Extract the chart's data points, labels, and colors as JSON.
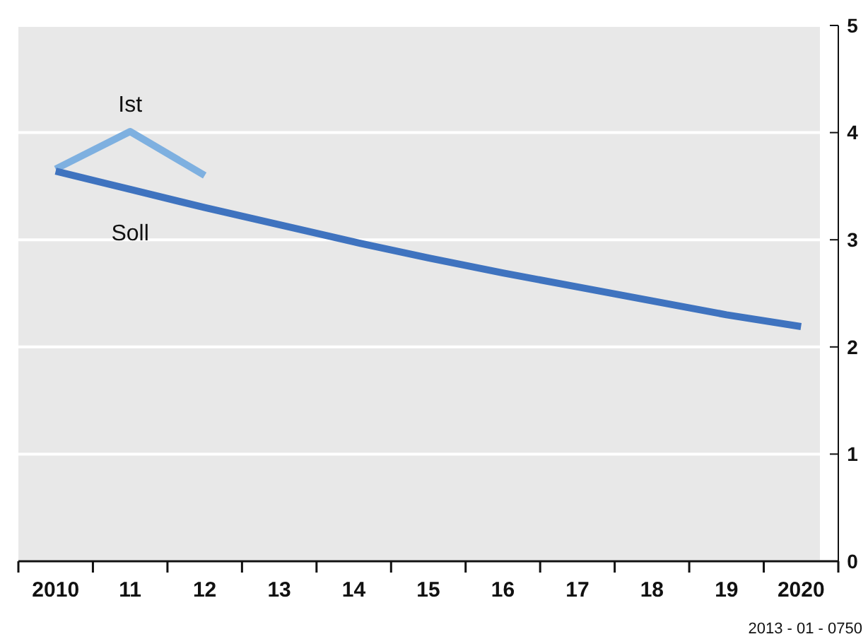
{
  "chart_data": {
    "type": "line",
    "categories": [
      "2010",
      "11",
      "12",
      "13",
      "14",
      "15",
      "16",
      "17",
      "18",
      "19",
      "2020"
    ],
    "series": [
      {
        "name": "Ist",
        "color": "#7eb0e0",
        "values": [
          3.66,
          4.01,
          3.6,
          null,
          null,
          null,
          null,
          null,
          null,
          null,
          null
        ]
      },
      {
        "name": "Soll",
        "color": "#3f73bf",
        "values": [
          3.64,
          3.47,
          3.3,
          3.14,
          2.98,
          2.83,
          2.69,
          2.56,
          2.43,
          2.3,
          2.19
        ]
      }
    ],
    "ylim": [
      0,
      5
    ],
    "yticks": [
      0,
      1,
      2,
      3,
      4,
      5
    ],
    "grid": "y",
    "marker": "none",
    "line_style": "solid",
    "annotations": [
      "2013 - 01 - 0750"
    ]
  }
}
